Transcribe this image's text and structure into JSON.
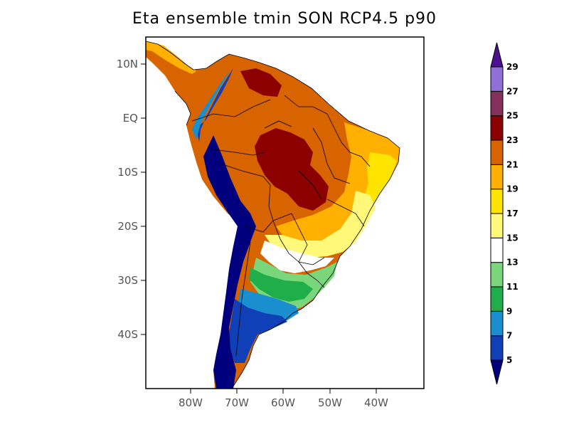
{
  "title": "Eta ensemble tmin SON RCP4.5 p90",
  "map": {
    "lat_labels": [
      "10N",
      "EQ",
      "10S",
      "20S",
      "30S",
      "40S"
    ],
    "lon_labels": [
      "80W",
      "70W",
      "60W",
      "50W",
      "40W"
    ]
  },
  "colorbar": {
    "labels": [
      "5",
      "7",
      "9",
      "11",
      "13",
      "15",
      "17",
      "19",
      "21",
      "23",
      "25",
      "27",
      "29"
    ],
    "colors": [
      "#1040b8",
      "#1a8fd0",
      "#1fae4a",
      "#7ad67a",
      "#ffffff",
      "#fff878",
      "#ffe400",
      "#ffb000",
      "#d86400",
      "#8c0000",
      "#86305c",
      "#9070d8"
    ],
    "under_color": "#00007e",
    "over_color": "#4a1090"
  }
}
